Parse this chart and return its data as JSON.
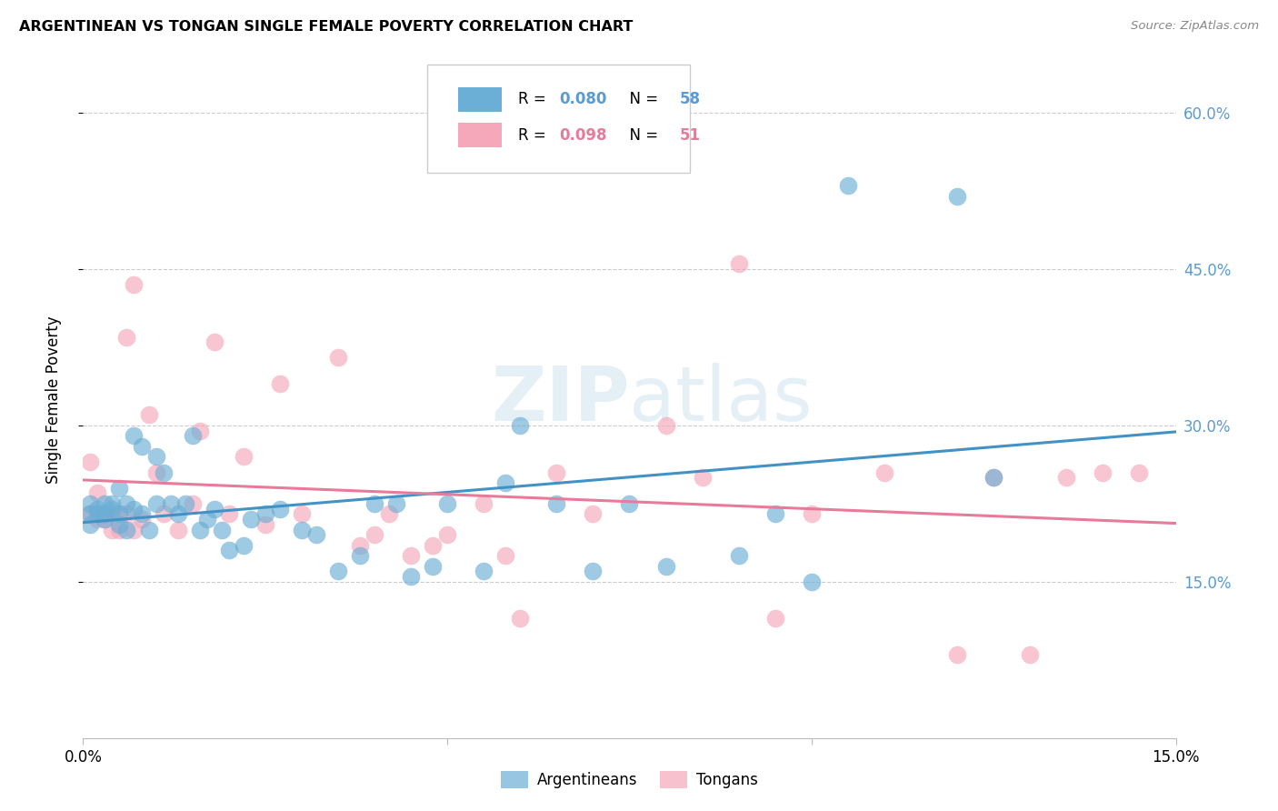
{
  "title": "ARGENTINEAN VS TONGAN SINGLE FEMALE POVERTY CORRELATION CHART",
  "source": "Source: ZipAtlas.com",
  "ylabel": "Single Female Poverty",
  "xlim": [
    0.0,
    0.15
  ],
  "ylim": [
    0.0,
    0.65
  ],
  "x_ticks": [
    0.0,
    0.05,
    0.1,
    0.15
  ],
  "x_tick_labels": [
    "0.0%",
    "",
    "",
    "15.0%"
  ],
  "y_ticks_right": [
    0.15,
    0.3,
    0.45,
    0.6
  ],
  "y_tick_labels_right": [
    "15.0%",
    "30.0%",
    "45.0%",
    "60.0%"
  ],
  "watermark_zip": "ZIP",
  "watermark_atlas": "atlas",
  "blue_color": "#6baed6",
  "pink_color": "#f4a8ba",
  "line_blue": "#4292c6",
  "line_pink": "#e87a9a",
  "background_color": "#ffffff",
  "grid_color": "#cccccc",
  "arg_points_x": [
    0.001,
    0.001,
    0.001,
    0.002,
    0.002,
    0.003,
    0.003,
    0.003,
    0.004,
    0.004,
    0.005,
    0.005,
    0.005,
    0.006,
    0.006,
    0.007,
    0.007,
    0.008,
    0.008,
    0.009,
    0.01,
    0.01,
    0.011,
    0.012,
    0.013,
    0.014,
    0.015,
    0.016,
    0.017,
    0.018,
    0.019,
    0.02,
    0.022,
    0.023,
    0.025,
    0.027,
    0.03,
    0.032,
    0.035,
    0.038,
    0.04,
    0.043,
    0.045,
    0.048,
    0.05,
    0.055,
    0.058,
    0.06,
    0.065,
    0.07,
    0.075,
    0.08,
    0.09,
    0.095,
    0.1,
    0.105,
    0.12,
    0.125
  ],
  "arg_points_y": [
    0.215,
    0.225,
    0.205,
    0.22,
    0.215,
    0.225,
    0.215,
    0.21,
    0.22,
    0.225,
    0.215,
    0.205,
    0.24,
    0.225,
    0.2,
    0.29,
    0.22,
    0.215,
    0.28,
    0.2,
    0.225,
    0.27,
    0.255,
    0.225,
    0.215,
    0.225,
    0.29,
    0.2,
    0.21,
    0.22,
    0.2,
    0.18,
    0.185,
    0.21,
    0.215,
    0.22,
    0.2,
    0.195,
    0.16,
    0.175,
    0.225,
    0.225,
    0.155,
    0.165,
    0.225,
    0.16,
    0.245,
    0.3,
    0.225,
    0.16,
    0.225,
    0.165,
    0.175,
    0.215,
    0.15,
    0.53,
    0.52,
    0.25
  ],
  "ton_points_x": [
    0.001,
    0.001,
    0.002,
    0.002,
    0.003,
    0.003,
    0.004,
    0.004,
    0.005,
    0.005,
    0.006,
    0.006,
    0.007,
    0.007,
    0.008,
    0.009,
    0.01,
    0.011,
    0.013,
    0.015,
    0.016,
    0.018,
    0.02,
    0.022,
    0.025,
    0.027,
    0.03,
    0.035,
    0.038,
    0.04,
    0.042,
    0.045,
    0.048,
    0.05,
    0.055,
    0.058,
    0.06,
    0.065,
    0.07,
    0.08,
    0.085,
    0.09,
    0.095,
    0.1,
    0.11,
    0.12,
    0.125,
    0.13,
    0.135,
    0.14,
    0.145
  ],
  "ton_points_y": [
    0.265,
    0.215,
    0.235,
    0.21,
    0.21,
    0.215,
    0.2,
    0.215,
    0.2,
    0.215,
    0.215,
    0.385,
    0.2,
    0.435,
    0.21,
    0.31,
    0.255,
    0.215,
    0.2,
    0.225,
    0.295,
    0.38,
    0.215,
    0.27,
    0.205,
    0.34,
    0.215,
    0.365,
    0.185,
    0.195,
    0.215,
    0.175,
    0.185,
    0.195,
    0.225,
    0.175,
    0.115,
    0.255,
    0.215,
    0.3,
    0.25,
    0.455,
    0.115,
    0.215,
    0.255,
    0.08,
    0.25,
    0.08,
    0.25,
    0.255,
    0.255
  ]
}
